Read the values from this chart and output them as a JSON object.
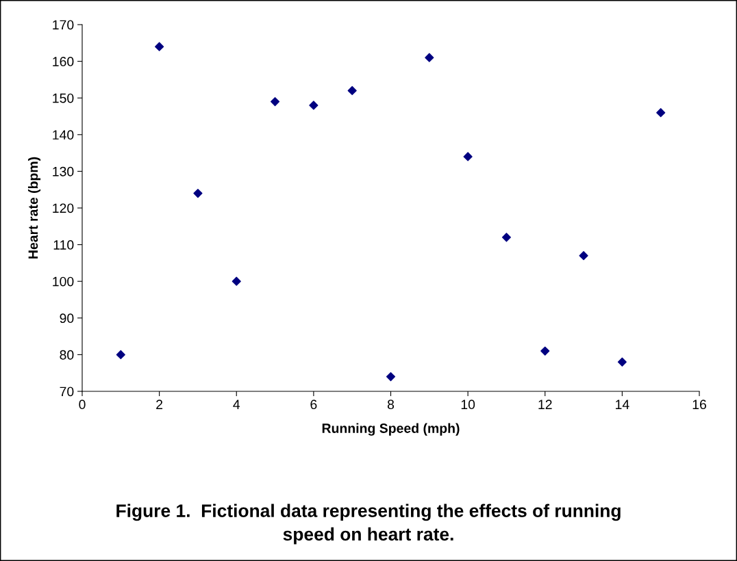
{
  "chart_data": {
    "type": "scatter",
    "x": [
      1,
      2,
      3,
      4,
      5,
      6,
      7,
      8,
      9,
      10,
      11,
      12,
      13,
      14,
      15
    ],
    "values": [
      80,
      164,
      124,
      100,
      149,
      148,
      152,
      74,
      161,
      134,
      112,
      81,
      107,
      78,
      146
    ],
    "color": "#000080",
    "marker": "diamond",
    "xlabel": "Running Speed (mph)",
    "ylabel": "Heart rate (bpm)",
    "xlim": [
      0,
      16
    ],
    "xticks": [
      0,
      2,
      4,
      6,
      8,
      10,
      12,
      14,
      16
    ],
    "ylim": [
      70,
      170
    ],
    "yticks": [
      70,
      80,
      90,
      100,
      110,
      120,
      130,
      140,
      150,
      160,
      170
    ],
    "grid": false,
    "legend": false,
    "annotations": [
      "Figure 1.  Fictional data representing the effects of running\nspeed on heart rate."
    ]
  }
}
